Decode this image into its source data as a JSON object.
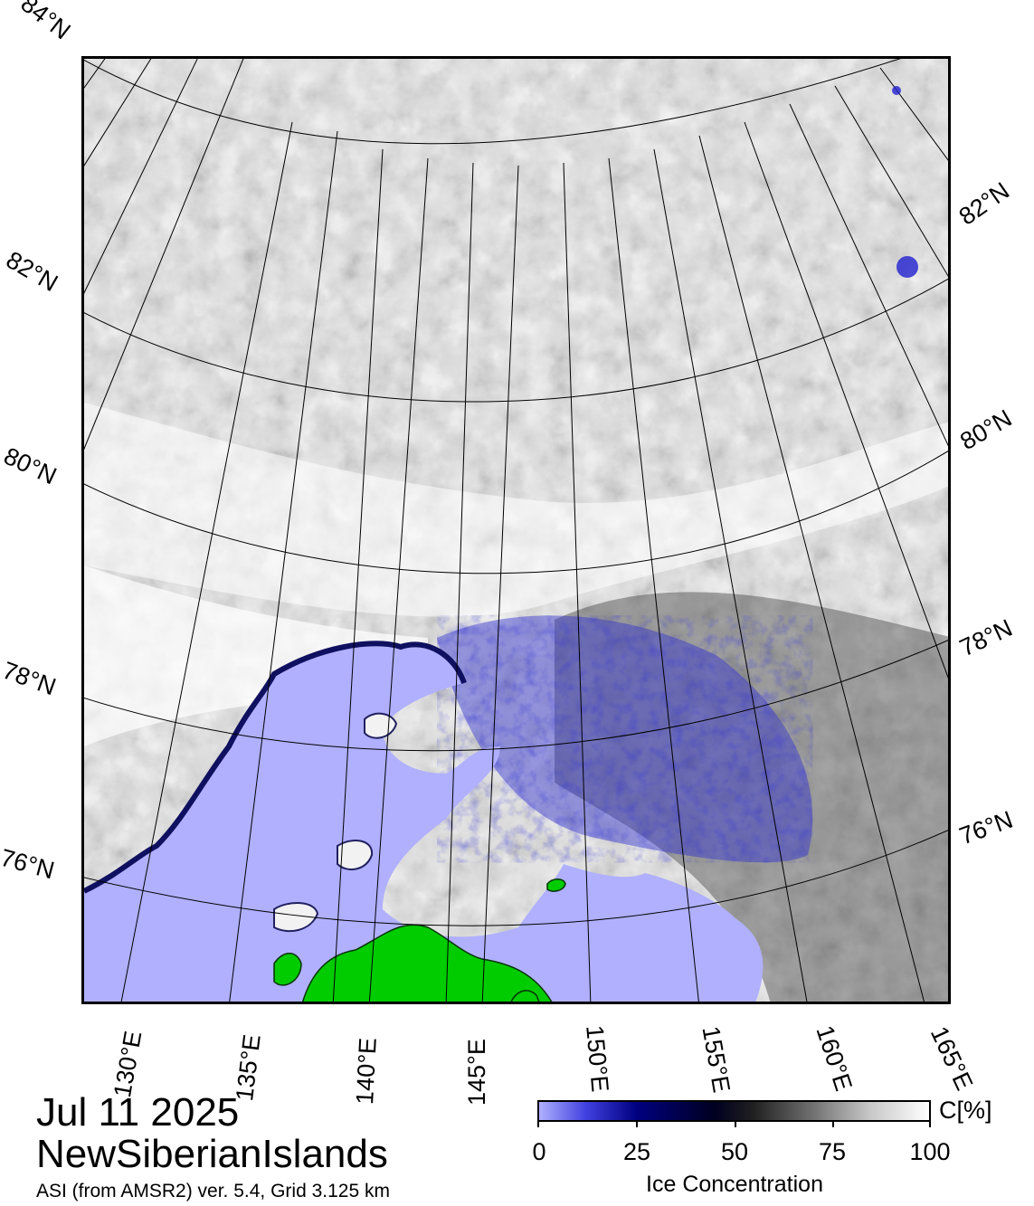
{
  "map": {
    "date": "Jul 11 2025",
    "region": "NewSiberianIslands",
    "source": "ASI (from AMSR2) ver. 5.4,  Grid 3.125 km",
    "lat_labels": [
      "84°N",
      "82°N",
      "80°N",
      "78°N",
      "76°N"
    ],
    "lat_labels_right": [
      "82°N",
      "80°N",
      "78°N",
      "76°N"
    ],
    "lon_labels": [
      "130°E",
      "135°E",
      "140°E",
      "145°E",
      "150°E",
      "155°E",
      "160°E",
      "165°E"
    ],
    "colors": {
      "water": "#b0b0ff",
      "land": "#00cc00",
      "ice_low": "#4040e0",
      "ice_mid": "#000080",
      "ice_high": "#ffffff"
    }
  },
  "colorbar": {
    "title": "Ice Concentration",
    "unit": "C[%]",
    "ticks": [
      "0",
      "25",
      "50",
      "75",
      "100"
    ]
  }
}
